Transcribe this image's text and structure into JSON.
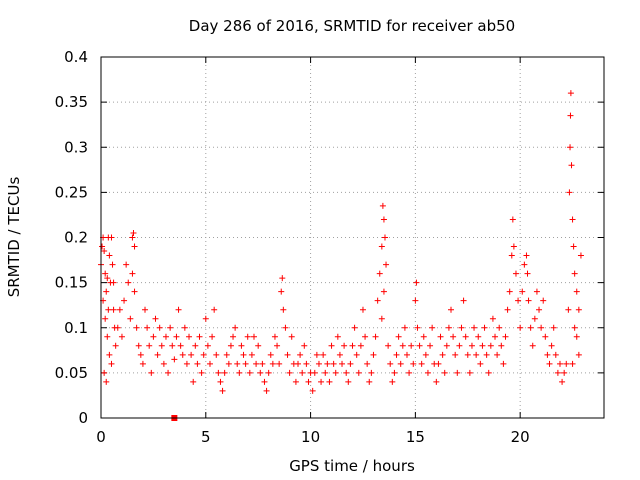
{
  "chart_data": {
    "type": "scatter",
    "title": "Day 286 of 2016, SRMTID for receiver ab50",
    "xlabel": "GPS time / hours",
    "ylabel": "SRMTID / TECUs",
    "xlim": [
      0,
      24
    ],
    "ylim": [
      0,
      0.4
    ],
    "x_ticks": [
      "0",
      "5",
      "10",
      "15",
      "20"
    ],
    "y_ticks": [
      "0",
      "0.05",
      "0.1",
      "0.15",
      "0.2",
      "0.25",
      "0.3",
      "0.35",
      "0.4"
    ],
    "grid": true,
    "marker": "plus",
    "colors": {
      "series": "#ff0000",
      "grid": "#a0a0a0",
      "axes": "#000000"
    },
    "series": [
      {
        "name": "SRMTID",
        "points": [
          [
            0.0,
            0.17
          ],
          [
            0.05,
            0.19
          ],
          [
            0.1,
            0.2
          ],
          [
            0.15,
            0.185
          ],
          [
            0.2,
            0.16
          ],
          [
            0.25,
            0.14
          ],
          [
            0.3,
            0.155
          ],
          [
            0.35,
            0.2
          ],
          [
            0.4,
            0.18
          ],
          [
            0.45,
            0.15
          ],
          [
            0.5,
            0.2
          ],
          [
            0.55,
            0.17
          ],
          [
            0.6,
            0.12
          ],
          [
            0.65,
            0.1
          ],
          [
            0.7,
            0.08
          ],
          [
            0.1,
            0.13
          ],
          [
            0.2,
            0.11
          ],
          [
            0.3,
            0.09
          ],
          [
            0.4,
            0.07
          ],
          [
            0.5,
            0.06
          ],
          [
            0.15,
            0.05
          ],
          [
            0.25,
            0.04
          ],
          [
            0.35,
            0.12
          ],
          [
            0.6,
            0.15
          ],
          [
            0.8,
            0.1
          ],
          [
            0.9,
            0.12
          ],
          [
            1.0,
            0.09
          ],
          [
            1.1,
            0.13
          ],
          [
            1.2,
            0.17
          ],
          [
            1.3,
            0.15
          ],
          [
            1.4,
            0.11
          ],
          [
            1.5,
            0.2
          ],
          [
            1.55,
            0.205
          ],
          [
            1.6,
            0.19
          ],
          [
            1.5,
            0.16
          ],
          [
            1.6,
            0.14
          ],
          [
            1.7,
            0.1
          ],
          [
            1.8,
            0.08
          ],
          [
            1.9,
            0.07
          ],
          [
            2.0,
            0.06
          ],
          [
            2.1,
            0.12
          ],
          [
            2.2,
            0.1
          ],
          [
            2.3,
            0.08
          ],
          [
            2.4,
            0.05
          ],
          [
            2.5,
            0.09
          ],
          [
            2.6,
            0.11
          ],
          [
            2.7,
            0.07
          ],
          [
            2.8,
            0.1
          ],
          [
            2.9,
            0.08
          ],
          [
            3.0,
            0.06
          ],
          [
            3.1,
            0.09
          ],
          [
            3.2,
            0.05
          ],
          [
            3.3,
            0.1
          ],
          [
            3.4,
            0.08
          ],
          [
            3.5,
            0.065
          ],
          [
            3.6,
            0.09
          ],
          [
            3.7,
            0.12
          ],
          [
            3.8,
            0.08
          ],
          [
            3.9,
            0.07
          ],
          [
            4.0,
            0.1
          ],
          [
            4.1,
            0.06
          ],
          [
            4.2,
            0.09
          ],
          [
            4.3,
            0.07
          ],
          [
            4.4,
            0.04
          ],
          [
            4.5,
            0.08
          ],
          [
            4.6,
            0.06
          ],
          [
            4.7,
            0.09
          ],
          [
            4.8,
            0.05
          ],
          [
            4.9,
            0.07
          ],
          [
            5.0,
            0.11
          ],
          [
            5.1,
            0.08
          ],
          [
            5.2,
            0.06
          ],
          [
            5.3,
            0.09
          ],
          [
            5.4,
            0.12
          ],
          [
            5.5,
            0.07
          ],
          [
            5.6,
            0.05
          ],
          [
            5.7,
            0.04
          ],
          [
            5.8,
            0.03
          ],
          [
            5.9,
            0.05
          ],
          [
            6.0,
            0.07
          ],
          [
            6.1,
            0.06
          ],
          [
            6.2,
            0.08
          ],
          [
            6.3,
            0.09
          ],
          [
            6.4,
            0.1
          ],
          [
            6.5,
            0.06
          ],
          [
            6.6,
            0.05
          ],
          [
            6.7,
            0.08
          ],
          [
            6.8,
            0.07
          ],
          [
            6.9,
            0.06
          ],
          [
            7.0,
            0.09
          ],
          [
            7.1,
            0.05
          ],
          [
            7.2,
            0.07
          ],
          [
            7.3,
            0.09
          ],
          [
            7.4,
            0.06
          ],
          [
            7.5,
            0.08
          ],
          [
            7.6,
            0.05
          ],
          [
            7.7,
            0.06
          ],
          [
            7.8,
            0.04
          ],
          [
            7.9,
            0.03
          ],
          [
            8.0,
            0.05
          ],
          [
            8.1,
            0.07
          ],
          [
            8.2,
            0.06
          ],
          [
            8.3,
            0.09
          ],
          [
            8.4,
            0.08
          ],
          [
            8.5,
            0.06
          ],
          [
            8.6,
            0.14
          ],
          [
            8.65,
            0.155
          ],
          [
            8.7,
            0.12
          ],
          [
            8.8,
            0.1
          ],
          [
            8.9,
            0.07
          ],
          [
            9.0,
            0.05
          ],
          [
            9.1,
            0.09
          ],
          [
            9.2,
            0.06
          ],
          [
            9.3,
            0.04
          ],
          [
            9.4,
            0.06
          ],
          [
            9.5,
            0.07
          ],
          [
            9.6,
            0.05
          ],
          [
            9.7,
            0.08
          ],
          [
            9.8,
            0.06
          ],
          [
            9.9,
            0.04
          ],
          [
            10.0,
            0.05
          ],
          [
            10.1,
            0.03
          ],
          [
            10.2,
            0.05
          ],
          [
            10.3,
            0.07
          ],
          [
            10.4,
            0.06
          ],
          [
            10.5,
            0.04
          ],
          [
            10.6,
            0.07
          ],
          [
            10.7,
            0.05
          ],
          [
            10.8,
            0.06
          ],
          [
            10.9,
            0.04
          ],
          [
            11.0,
            0.08
          ],
          [
            11.1,
            0.06
          ],
          [
            11.2,
            0.05
          ],
          [
            11.3,
            0.09
          ],
          [
            11.4,
            0.07
          ],
          [
            11.5,
            0.06
          ],
          [
            11.6,
            0.08
          ],
          [
            11.7,
            0.05
          ],
          [
            11.8,
            0.04
          ],
          [
            11.9,
            0.06
          ],
          [
            12.0,
            0.08
          ],
          [
            12.1,
            0.1
          ],
          [
            12.2,
            0.07
          ],
          [
            12.3,
            0.05
          ],
          [
            12.4,
            0.08
          ],
          [
            12.5,
            0.12
          ],
          [
            12.6,
            0.09
          ],
          [
            12.7,
            0.06
          ],
          [
            12.8,
            0.04
          ],
          [
            12.9,
            0.05
          ],
          [
            13.0,
            0.07
          ],
          [
            13.1,
            0.09
          ],
          [
            13.2,
            0.13
          ],
          [
            13.3,
            0.16
          ],
          [
            13.4,
            0.19
          ],
          [
            13.45,
            0.235
          ],
          [
            13.5,
            0.22
          ],
          [
            13.55,
            0.2
          ],
          [
            13.6,
            0.17
          ],
          [
            13.5,
            0.14
          ],
          [
            13.4,
            0.11
          ],
          [
            13.7,
            0.08
          ],
          [
            13.8,
            0.06
          ],
          [
            13.9,
            0.04
          ],
          [
            14.0,
            0.05
          ],
          [
            14.1,
            0.07
          ],
          [
            14.2,
            0.09
          ],
          [
            14.3,
            0.06
          ],
          [
            14.4,
            0.08
          ],
          [
            14.5,
            0.1
          ],
          [
            14.6,
            0.07
          ],
          [
            14.7,
            0.05
          ],
          [
            14.8,
            0.08
          ],
          [
            14.9,
            0.06
          ],
          [
            15.0,
            0.13
          ],
          [
            15.05,
            0.15
          ],
          [
            15.1,
            0.1
          ],
          [
            15.2,
            0.08
          ],
          [
            15.3,
            0.06
          ],
          [
            15.4,
            0.09
          ],
          [
            15.5,
            0.07
          ],
          [
            15.6,
            0.05
          ],
          [
            15.7,
            0.08
          ],
          [
            15.8,
            0.1
          ],
          [
            15.9,
            0.06
          ],
          [
            16.0,
            0.04
          ],
          [
            16.1,
            0.06
          ],
          [
            16.2,
            0.09
          ],
          [
            16.3,
            0.07
          ],
          [
            16.4,
            0.05
          ],
          [
            16.5,
            0.08
          ],
          [
            16.6,
            0.1
          ],
          [
            16.7,
            0.12
          ],
          [
            16.8,
            0.09
          ],
          [
            16.9,
            0.07
          ],
          [
            17.0,
            0.05
          ],
          [
            17.1,
            0.08
          ],
          [
            17.2,
            0.1
          ],
          [
            17.3,
            0.13
          ],
          [
            17.4,
            0.09
          ],
          [
            17.5,
            0.07
          ],
          [
            17.6,
            0.05
          ],
          [
            17.7,
            0.08
          ],
          [
            17.8,
            0.1
          ],
          [
            17.9,
            0.07
          ],
          [
            18.0,
            0.09
          ],
          [
            18.1,
            0.06
          ],
          [
            18.2,
            0.08
          ],
          [
            18.3,
            0.1
          ],
          [
            18.4,
            0.07
          ],
          [
            18.5,
            0.05
          ],
          [
            18.6,
            0.08
          ],
          [
            18.7,
            0.11
          ],
          [
            18.8,
            0.09
          ],
          [
            18.9,
            0.07
          ],
          [
            19.0,
            0.1
          ],
          [
            19.1,
            0.08
          ],
          [
            19.2,
            0.06
          ],
          [
            19.3,
            0.09
          ],
          [
            19.4,
            0.12
          ],
          [
            19.5,
            0.14
          ],
          [
            19.6,
            0.18
          ],
          [
            19.65,
            0.22
          ],
          [
            19.7,
            0.19
          ],
          [
            19.8,
            0.16
          ],
          [
            19.9,
            0.13
          ],
          [
            20.0,
            0.1
          ],
          [
            20.1,
            0.14
          ],
          [
            20.2,
            0.17
          ],
          [
            20.3,
            0.18
          ],
          [
            20.35,
            0.16
          ],
          [
            20.4,
            0.13
          ],
          [
            20.5,
            0.1
          ],
          [
            20.6,
            0.08
          ],
          [
            20.7,
            0.11
          ],
          [
            20.8,
            0.14
          ],
          [
            20.9,
            0.12
          ],
          [
            21.0,
            0.1
          ],
          [
            21.1,
            0.13
          ],
          [
            21.2,
            0.09
          ],
          [
            21.3,
            0.07
          ],
          [
            21.4,
            0.06
          ],
          [
            21.5,
            0.08
          ],
          [
            21.6,
            0.1
          ],
          [
            21.7,
            0.07
          ],
          [
            21.8,
            0.05
          ],
          [
            21.9,
            0.06
          ],
          [
            22.0,
            0.04
          ],
          [
            22.1,
            0.05
          ],
          [
            22.2,
            0.06
          ],
          [
            22.3,
            0.12
          ],
          [
            22.35,
            0.25
          ],
          [
            22.38,
            0.3
          ],
          [
            22.4,
            0.335
          ],
          [
            22.42,
            0.36
          ],
          [
            22.45,
            0.28
          ],
          [
            22.5,
            0.22
          ],
          [
            22.55,
            0.19
          ],
          [
            22.6,
            0.16
          ],
          [
            22.7,
            0.14
          ],
          [
            22.8,
            0.12
          ],
          [
            22.9,
            0.18
          ],
          [
            22.7,
            0.09
          ],
          [
            22.8,
            0.07
          ],
          [
            22.6,
            0.1
          ],
          [
            22.5,
            0.06
          ]
        ]
      },
      {
        "name": "marker",
        "style": "square",
        "points": [
          [
            3.5,
            0.0
          ]
        ]
      }
    ]
  }
}
